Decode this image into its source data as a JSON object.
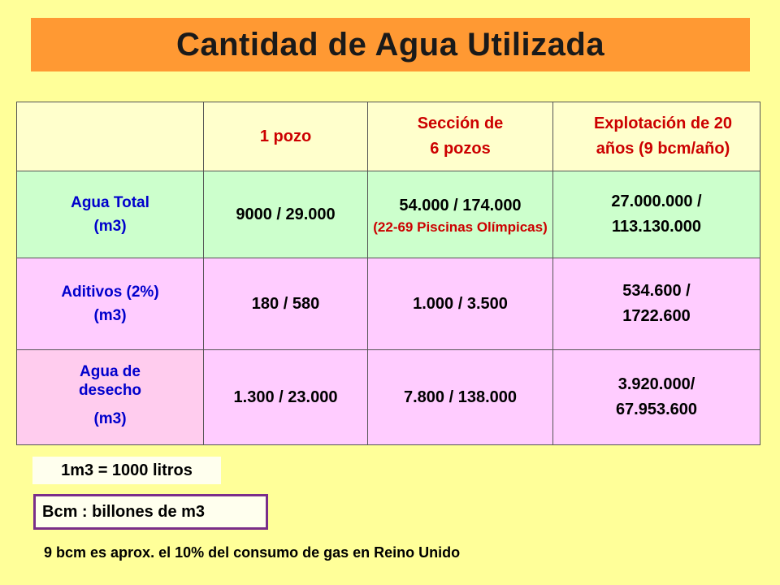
{
  "title": "Cantidad de Agua Utilizada",
  "table": {
    "headers": [
      "",
      "1 pozo",
      "Sección de 6 pozos",
      "Explotación de 20 años (9 bcm/año)"
    ],
    "header_lines": {
      "col1": "1 pozo",
      "col2_l1": "Sección de",
      "col2_l2": "6 pozos",
      "col3_l1": "Explotación de 20",
      "col3_l2": "años (9 bcm/año)"
    },
    "rows": [
      {
        "label_l1": "Agua Total",
        "label_l2": "(m3)",
        "c1": "9000 / 29.000",
        "c2": "54.000 / 174.000",
        "c2_note": "(22-69 Piscinas Olímpicas)",
        "c3_l1": "27.000.000 /",
        "c3_l2": "113.130.000"
      },
      {
        "label_l1": "Aditivos (2%)",
        "label_l2": "(m3)",
        "c1": "180 / 580",
        "c2": "1.000 / 3.500",
        "c3_l1": "534.600 /",
        "c3_l2": "1722.600"
      },
      {
        "label_l1": "Agua de",
        "label_l1b": "desecho",
        "label_l2": "(m3)",
        "c1": "1.300 / 23.000",
        "c2": "7.800 / 138.000",
        "c3_l1": "3.920.000/",
        "c3_l2": "67.953.600"
      }
    ]
  },
  "notes": {
    "conversion": "1m3 = 1000 litros",
    "bcm_definition": "Bcm : billones de m3",
    "footnote": "9 bcm es aprox. el 10% del consumo de gas en Reino Unido"
  },
  "colors": {
    "background": "#FFFF99",
    "title_bar": "#FF9933",
    "header_row": "#FFFFCC",
    "agua_total_row": "#CCFFCC",
    "aditivos_row": "#FFCCFF",
    "desecho_row": "#FFCCFF",
    "header_text": "#CC0000",
    "label_text": "#0000CC",
    "bcm_box_border": "#7A2E8A"
  }
}
